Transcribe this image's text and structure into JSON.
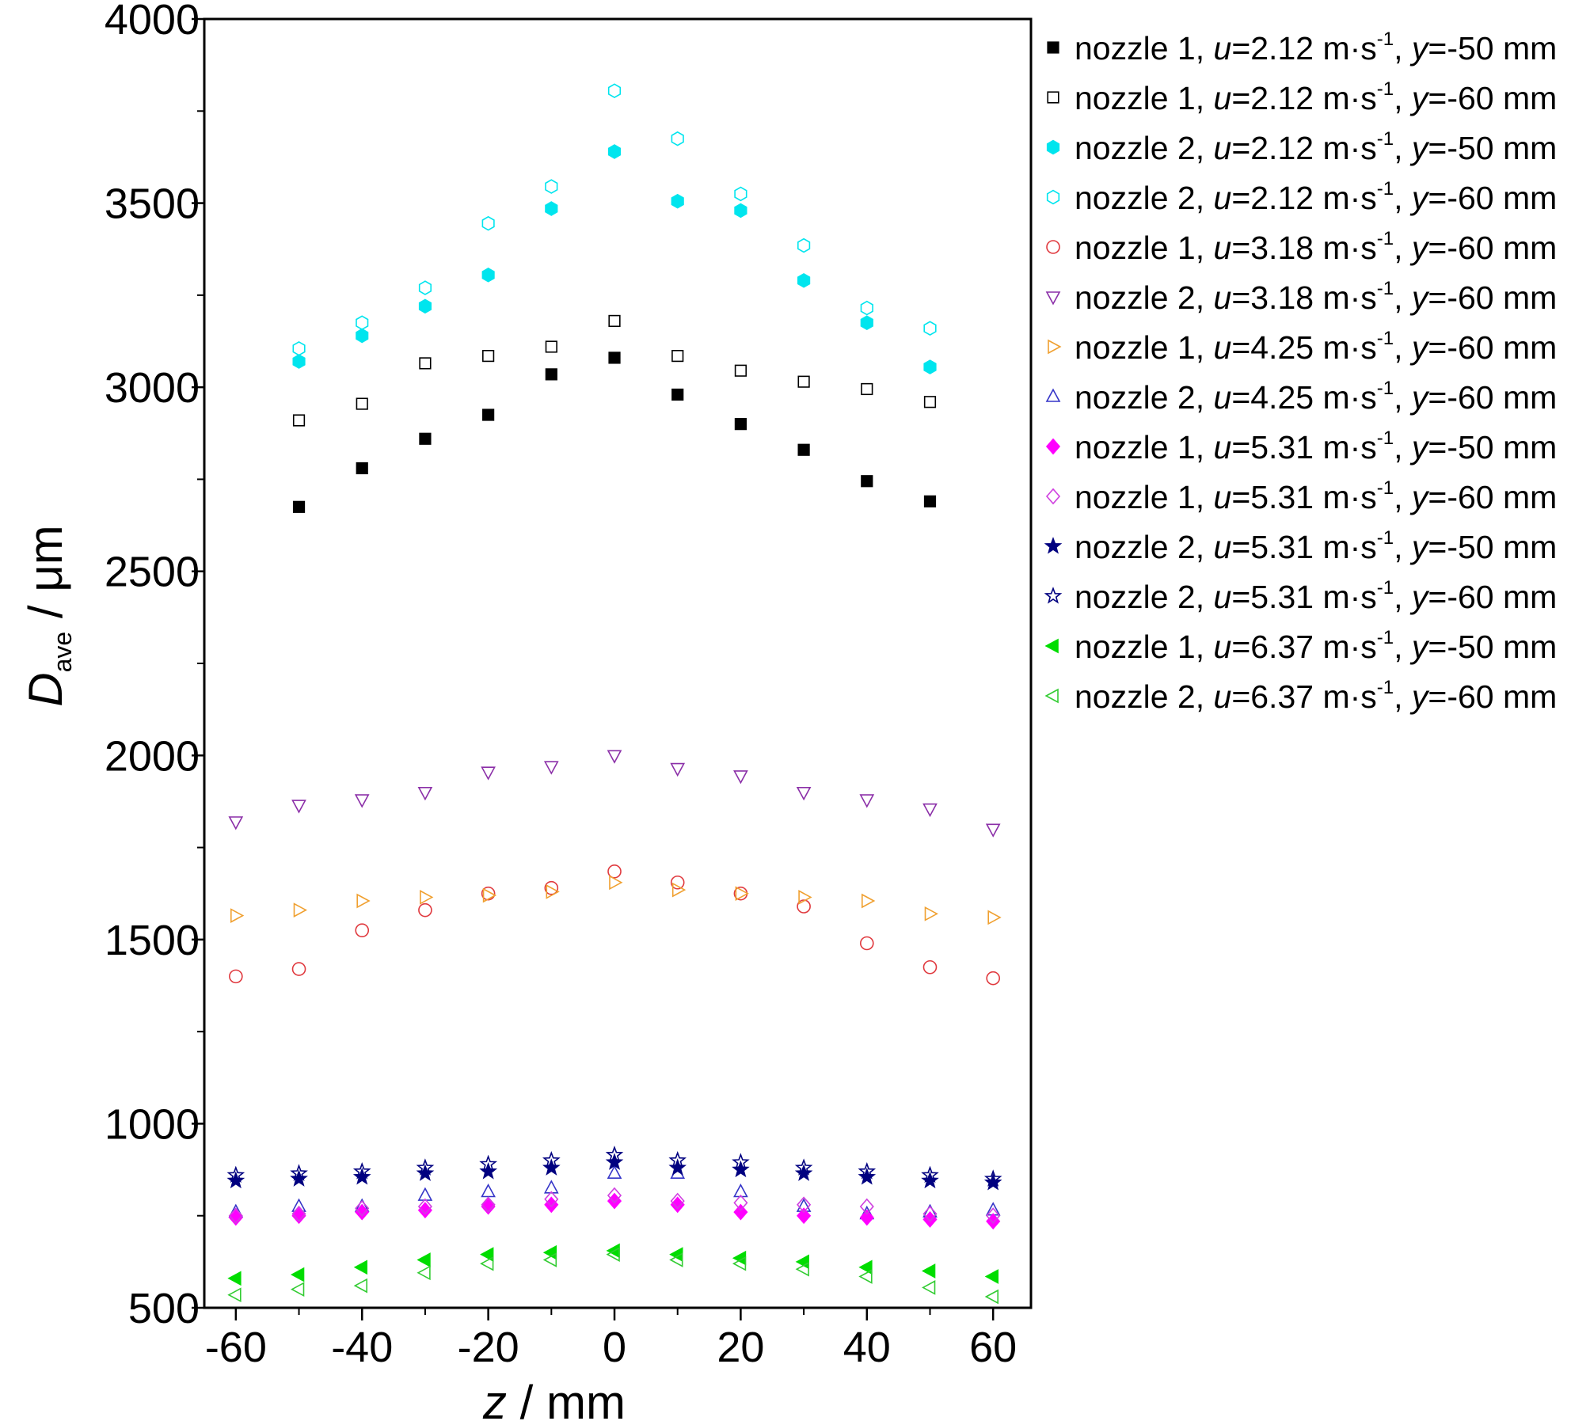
{
  "chart_data": {
    "type": "scatter",
    "title": "",
    "xlabel": {
      "var": "z",
      "unit": " / mm"
    },
    "ylabel": {
      "var": "D",
      "sub": "ave",
      "unit": " / μm"
    },
    "xlim": [
      -65,
      66
    ],
    "ylim": [
      500,
      4000
    ],
    "xticks": [
      -60,
      -40,
      -20,
      0,
      20,
      40,
      60
    ],
    "yticks": [
      500,
      1000,
      1500,
      2000,
      2500,
      3000,
      3500,
      4000
    ],
    "grid": false,
    "legend_position": "right",
    "series": [
      {
        "name": "nozzle 1, u=2.12 m·s-1, y=-50 mm",
        "nozzle": "nozzle 1",
        "u": "2.12",
        "y": "-50",
        "marker": "square",
        "filled": true,
        "color": "#000000",
        "x": [
          -50,
          -40,
          -30,
          -20,
          -10,
          0,
          10,
          20,
          30,
          40,
          50
        ],
        "values": [
          2675,
          2780,
          2860,
          2925,
          3035,
          3080,
          2980,
          2900,
          2830,
          2745,
          2690
        ]
      },
      {
        "name": "nozzle 1, u=2.12 m·s-1, y=-60 mm",
        "nozzle": "nozzle 1",
        "u": "2.12",
        "y": "-60",
        "marker": "square",
        "filled": false,
        "color": "#000000",
        "x": [
          -50,
          -40,
          -30,
          -20,
          -10,
          0,
          10,
          20,
          30,
          40,
          50
        ],
        "values": [
          2910,
          2955,
          3065,
          3085,
          3110,
          3180,
          3085,
          3045,
          3015,
          2995,
          2960
        ]
      },
      {
        "name": "nozzle 2, u=2.12 m·s-1, y=-50 mm",
        "nozzle": "nozzle 2",
        "u": "2.12",
        "y": "-50",
        "marker": "hexagon",
        "filled": true,
        "color": "#00e5ee",
        "x": [
          -50,
          -40,
          -30,
          -20,
          -10,
          0,
          10,
          20,
          30,
          40,
          50
        ],
        "values": [
          3070,
          3140,
          3220,
          3305,
          3485,
          3640,
          3505,
          3480,
          3290,
          3175,
          3055
        ]
      },
      {
        "name": "nozzle 2, u=2.12 m·s-1, y=-60 mm",
        "nozzle": "nozzle 2",
        "u": "2.12",
        "y": "-60",
        "marker": "hexagon",
        "filled": false,
        "color": "#00e5ee",
        "x": [
          -50,
          -40,
          -30,
          -20,
          -10,
          0,
          10,
          20,
          30,
          40,
          50
        ],
        "values": [
          3105,
          3175,
          3270,
          3445,
          3545,
          3805,
          3675,
          3525,
          3385,
          3215,
          3160
        ]
      },
      {
        "name": "nozzle 1, u=3.18 m·s-1, y=-60 mm",
        "nozzle": "nozzle 1",
        "u": "3.18",
        "y": "-60",
        "marker": "circle",
        "filled": false,
        "color": "#e0393e",
        "x": [
          -60,
          -50,
          -40,
          -30,
          -20,
          -10,
          0,
          10,
          20,
          30,
          40,
          50,
          60
        ],
        "values": [
          1400,
          1420,
          1525,
          1580,
          1625,
          1640,
          1685,
          1655,
          1625,
          1590,
          1490,
          1425,
          1395
        ]
      },
      {
        "name": "nozzle 2, u=3.18 m·s-1, y=-60 mm",
        "nozzle": "nozzle 2",
        "u": "3.18",
        "y": "-60",
        "marker": "triangle-down",
        "filled": false,
        "color": "#8b2fa8",
        "x": [
          -60,
          -50,
          -40,
          -30,
          -20,
          -10,
          0,
          10,
          20,
          30,
          40,
          50,
          60
        ],
        "values": [
          1820,
          1865,
          1880,
          1900,
          1955,
          1970,
          2000,
          1965,
          1945,
          1900,
          1880,
          1855,
          1800
        ]
      },
      {
        "name": "nozzle 1, u=4.25 m·s-1, y=-60 mm",
        "nozzle": "nozzle 1",
        "u": "4.25",
        "y": "-60",
        "marker": "triangle-right",
        "filled": false,
        "color": "#f0a030",
        "x": [
          -60,
          -50,
          -40,
          -30,
          -20,
          -10,
          0,
          10,
          20,
          30,
          40,
          50,
          60
        ],
        "values": [
          1565,
          1580,
          1605,
          1615,
          1620,
          1630,
          1655,
          1635,
          1625,
          1615,
          1605,
          1570,
          1560
        ]
      },
      {
        "name": "nozzle 2, u=4.25 m·s-1, y=-60 mm",
        "nozzle": "nozzle 2",
        "u": "4.25",
        "y": "-60",
        "marker": "triangle-up",
        "filled": false,
        "color": "#3535c8",
        "x": [
          -60,
          -50,
          -40,
          -30,
          -20,
          -10,
          0,
          10,
          20,
          30,
          40,
          50,
          60
        ],
        "values": [
          760,
          775,
          775,
          805,
          815,
          825,
          865,
          865,
          815,
          775,
          755,
          760,
          765
        ]
      },
      {
        "name": "nozzle 1, u=5.31 m·s-1, y=-50 mm",
        "nozzle": "nozzle 1",
        "u": "5.31",
        "y": "-50",
        "marker": "diamond",
        "filled": true,
        "color": "#ff00ff",
        "x": [
          -60,
          -50,
          -40,
          -30,
          -20,
          -10,
          0,
          10,
          20,
          30,
          40,
          50,
          60
        ],
        "values": [
          745,
          750,
          760,
          765,
          775,
          780,
          790,
          780,
          760,
          750,
          745,
          740,
          735
        ]
      },
      {
        "name": "nozzle 1, u=5.31 m·s-1, y=-60 mm",
        "nozzle": "nozzle 1",
        "u": "5.31",
        "y": "-60",
        "marker": "diamond",
        "filled": false,
        "color": "#d040e0",
        "x": [
          -60,
          -50,
          -40,
          -30,
          -20,
          -10,
          0,
          10,
          20,
          30,
          40,
          50,
          60
        ],
        "values": [
          750,
          755,
          770,
          775,
          780,
          795,
          805,
          790,
          785,
          780,
          775,
          755,
          750
        ]
      },
      {
        "name": "nozzle 2, u=5.31 m·s-1, y=-50 mm",
        "nozzle": "nozzle 2",
        "u": "5.31",
        "y": "-50",
        "marker": "star",
        "filled": true,
        "color": "#000080",
        "x": [
          -60,
          -50,
          -40,
          -30,
          -20,
          -10,
          0,
          10,
          20,
          30,
          40,
          50,
          60
        ],
        "values": [
          845,
          850,
          855,
          865,
          870,
          880,
          895,
          880,
          875,
          865,
          855,
          845,
          840
        ]
      },
      {
        "name": "nozzle 2, u=5.31 m·s-1, y=-60 mm",
        "nozzle": "nozzle 2",
        "u": "5.31",
        "y": "-60",
        "marker": "star",
        "filled": false,
        "color": "#000080",
        "x": [
          -60,
          -50,
          -40,
          -30,
          -20,
          -10,
          0,
          10,
          20,
          30,
          40,
          50,
          60
        ],
        "values": [
          860,
          865,
          870,
          880,
          890,
          900,
          915,
          900,
          895,
          880,
          870,
          860,
          850
        ]
      },
      {
        "name": "nozzle 1, u=6.37 m·s-1, y=-50 mm",
        "nozzle": "nozzle 1",
        "u": "6.37",
        "y": "-50",
        "marker": "triangle-left",
        "filled": true,
        "color": "#00dd00",
        "x": [
          -60,
          -50,
          -40,
          -30,
          -20,
          -10,
          0,
          10,
          20,
          30,
          40,
          50,
          60
        ],
        "values": [
          580,
          590,
          610,
          630,
          645,
          650,
          655,
          645,
          635,
          625,
          610,
          600,
          585
        ]
      },
      {
        "name": "nozzle 2, u=6.37 m·s-1, y=-60 mm",
        "nozzle": "nozzle 2",
        "u": "6.37",
        "y": "-60",
        "marker": "triangle-left",
        "filled": false,
        "color": "#33cc33",
        "x": [
          -60,
          -50,
          -40,
          -30,
          -20,
          -10,
          0,
          10,
          20,
          30,
          40,
          50,
          60
        ],
        "values": [
          535,
          550,
          560,
          595,
          620,
          630,
          645,
          630,
          620,
          605,
          585,
          555,
          530
        ]
      }
    ]
  }
}
